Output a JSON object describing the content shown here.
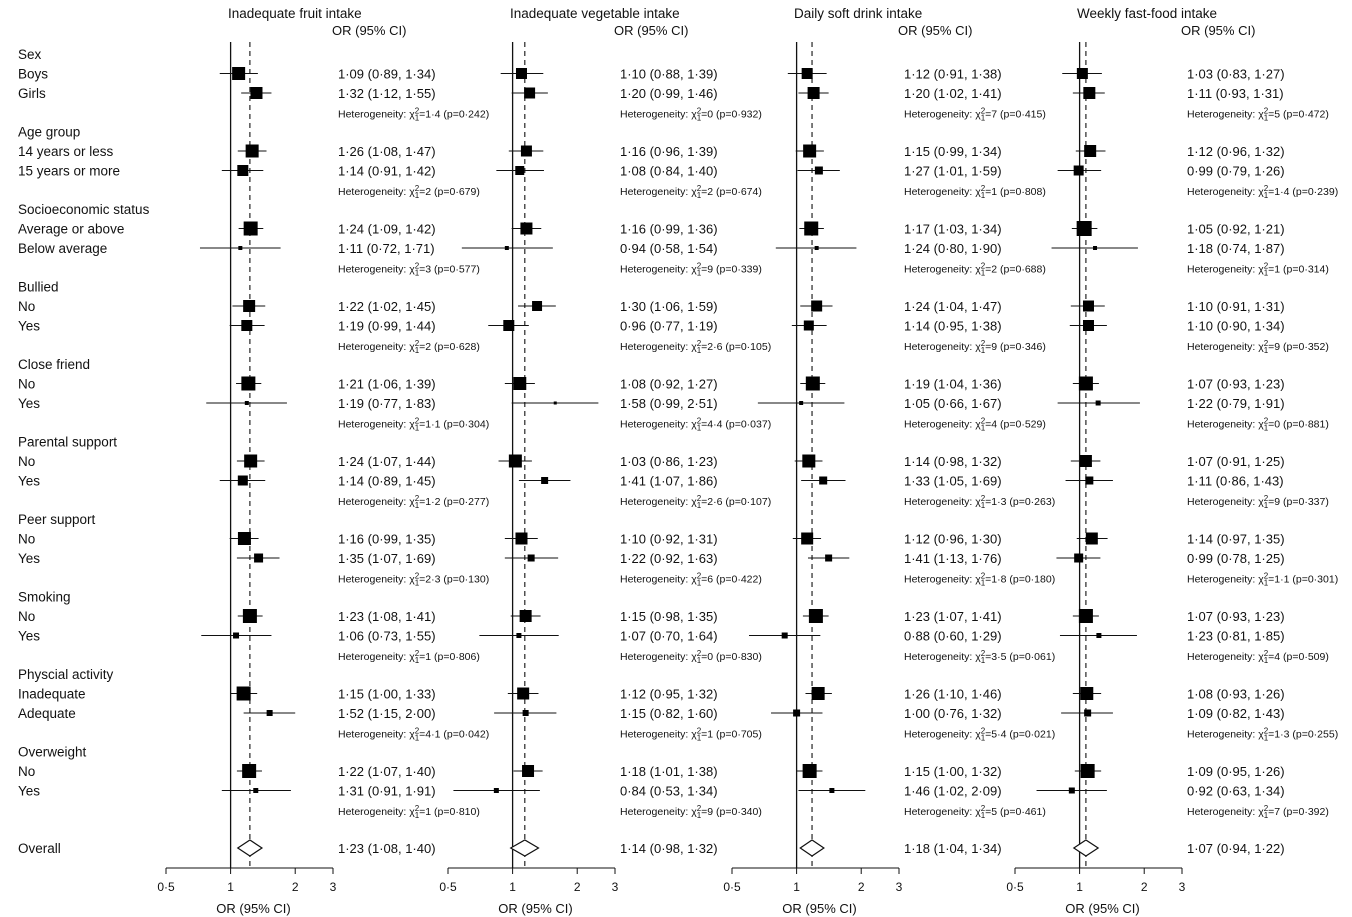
{
  "chart_data": {
    "type": "forest",
    "axis_title": "OR (95% CI)",
    "column_header": "OR (95% CI)",
    "x_scale": "log",
    "xlim": [
      0.5,
      3
    ],
    "x_ticks": [
      {
        "value": 0.5,
        "label": "0·5"
      },
      {
        "value": 1,
        "label": "1"
      },
      {
        "value": 2,
        "label": "2"
      },
      {
        "value": 3,
        "label": "3"
      }
    ],
    "reference_line": 1,
    "groups": [
      {
        "name": "Sex",
        "levels": [
          "Boys",
          "Girls"
        ]
      },
      {
        "name": "Age group",
        "levels": [
          "14 years or less",
          "15 years or more"
        ]
      },
      {
        "name": "Socioeconomic status",
        "levels": [
          "Average or above",
          "Below average"
        ]
      },
      {
        "name": "Bullied",
        "levels": [
          "No",
          "Yes"
        ]
      },
      {
        "name": "Close friend",
        "levels": [
          "No",
          "Yes"
        ]
      },
      {
        "name": "Parental support",
        "levels": [
          "No",
          "Yes"
        ]
      },
      {
        "name": "Peer support",
        "levels": [
          "No",
          "Yes"
        ]
      },
      {
        "name": "Smoking",
        "levels": [
          "No",
          "Yes"
        ]
      },
      {
        "name": "Physcial activity",
        "levels": [
          "Inadequate",
          "Adequate"
        ]
      },
      {
        "name": "Overweight",
        "levels": [
          "No",
          "Yes"
        ]
      }
    ],
    "overall_label": "Overall",
    "panels": [
      {
        "title": "Inadequate fruit intake",
        "estimates": [
          [
            [
              1.09,
              0.89,
              1.34,
              "1·09 (0·89, 1·34)",
              13
            ],
            [
              1.32,
              1.12,
              1.55,
              "1·32 (1·12, 1·55)",
              12
            ]
          ],
          [
            [
              1.26,
              1.08,
              1.47,
              "1·26 (1·08, 1·47)",
              13
            ],
            [
              1.14,
              0.91,
              1.42,
              "1·14 (0·91, 1·42)",
              11
            ]
          ],
          [
            [
              1.24,
              1.09,
              1.42,
              "1·24 (1·09, 1·42)",
              14
            ],
            [
              1.11,
              0.72,
              1.71,
              "1·11 (0·72, 1·71)",
              4
            ]
          ],
          [
            [
              1.22,
              1.02,
              1.45,
              "1·22 (1·02, 1·45)",
              12
            ],
            [
              1.19,
              0.99,
              1.44,
              "1·19 (0·99, 1·44)",
              11
            ]
          ],
          [
            [
              1.21,
              1.06,
              1.39,
              "1·21 (1·06, 1·39)",
              14
            ],
            [
              1.19,
              0.77,
              1.83,
              "1·19 (0·77, 1·83)",
              4
            ]
          ],
          [
            [
              1.24,
              1.07,
              1.44,
              "1·24 (1·07, 1·44)",
              13
            ],
            [
              1.14,
              0.89,
              1.45,
              "1·14 (0·89, 1·45)",
              10
            ]
          ],
          [
            [
              1.16,
              0.99,
              1.35,
              "1·16 (0·99, 1·35)",
              13
            ],
            [
              1.35,
              1.07,
              1.69,
              "1·35 (1·07, 1·69)",
              9
            ]
          ],
          [
            [
              1.23,
              1.08,
              1.41,
              "1·23 (1·08, 1·41)",
              14
            ],
            [
              1.06,
              0.73,
              1.55,
              "1·06 (0·73, 1·55)",
              6
            ]
          ],
          [
            [
              1.15,
              1.0,
              1.33,
              "1·15 (1·00, 1·33)",
              14
            ],
            [
              1.52,
              1.15,
              2.0,
              "1·52 (1·15, 2·00)",
              6
            ]
          ],
          [
            [
              1.22,
              1.07,
              1.4,
              "1·22 (1·07, 1·40)",
              14
            ],
            [
              1.31,
              0.91,
              1.91,
              "1·31 (0·91, 1·91)",
              5
            ]
          ]
        ],
        "heterogeneity": [
          {
            "chi": "1·4",
            "p": "(p=0·242)"
          },
          {
            "chi": "2",
            "p": "(p=0·679)"
          },
          {
            "chi": "3",
            "p": "(p=0·577)"
          },
          {
            "chi": "2",
            "p": "(p=0·628)"
          },
          {
            "chi": "1·1",
            "p": "(p=0·304)"
          },
          {
            "chi": "1·2",
            "p": "(p=0·277)"
          },
          {
            "chi": "2·3",
            "p": "(p=0·130)"
          },
          {
            "chi": "1",
            "p": "(p=0·806)"
          },
          {
            "chi": "4·1",
            "p": "(p=0·042)"
          },
          {
            "chi": "1",
            "p": "(p=0·810)"
          }
        ],
        "overall": [
          1.23,
          1.08,
          1.4,
          "1·23 (1·08, 1·40)"
        ]
      },
      {
        "title": "Inadequate vegetable intake",
        "estimates": [
          [
            [
              1.1,
              0.88,
              1.39,
              "1·10 (0·88, 1·39)",
              11
            ],
            [
              1.2,
              0.99,
              1.46,
              "1·20 (0·99, 1·46)",
              11
            ]
          ],
          [
            [
              1.16,
              0.96,
              1.39,
              "1·16 (0·96, 1·39)",
              11
            ],
            [
              1.08,
              0.84,
              1.4,
              "1·08 (0·84, 1·40)",
              9
            ]
          ],
          [
            [
              1.16,
              0.99,
              1.36,
              "1·16 (0·99, 1·36)",
              12
            ],
            [
              0.94,
              0.58,
              1.54,
              "0·94 (0·58, 1·54)",
              4
            ]
          ],
          [
            [
              1.3,
              1.06,
              1.59,
              "1·30 (1·06, 1·59)",
              10
            ],
            [
              0.96,
              0.77,
              1.19,
              "0·96 (0·77, 1·19)",
              11
            ]
          ],
          [
            [
              1.08,
              0.92,
              1.27,
              "1·08 (0·92, 1·27)",
              13
            ],
            [
              1.58,
              0.99,
              2.51,
              "1·58 (0·99, 2·51)",
              3
            ]
          ],
          [
            [
              1.03,
              0.86,
              1.23,
              "1·03 (0·86, 1·23)",
              13
            ],
            [
              1.41,
              1.07,
              1.86,
              "1·41 (1·07, 1·86)",
              7
            ]
          ],
          [
            [
              1.1,
              0.92,
              1.31,
              "1·10 (0·92, 1·31)",
              12
            ],
            [
              1.22,
              0.92,
              1.63,
              "1·22 (0·92, 1·63)",
              7
            ]
          ],
          [
            [
              1.15,
              0.98,
              1.35,
              "1·15 (0·98, 1·35)",
              12
            ],
            [
              1.07,
              0.7,
              1.64,
              "1·07 (0·70, 1·64)",
              5
            ]
          ],
          [
            [
              1.12,
              0.95,
              1.32,
              "1·12 (0·95, 1·32)",
              12
            ],
            [
              1.15,
              0.82,
              1.6,
              "1·15 (0·82, 1·60)",
              6
            ]
          ],
          [
            [
              1.18,
              1.01,
              1.38,
              "1·18 (1·01, 1·38)",
              12
            ],
            [
              0.84,
              0.53,
              1.34,
              "0·84 (0·53, 1·34)",
              5
            ]
          ]
        ],
        "heterogeneity": [
          {
            "chi": "0",
            "p": "(p=0·932)"
          },
          {
            "chi": "2",
            "p": "(p=0·674)"
          },
          {
            "chi": "9",
            "p": "(p=0·339)"
          },
          {
            "chi": "2·6",
            "p": "(p=0·105)"
          },
          {
            "chi": "4·4",
            "p": "(p=0·037)"
          },
          {
            "chi": "2·6",
            "p": "(p=0·107)"
          },
          {
            "chi": "6",
            "p": "(p=0·422)"
          },
          {
            "chi": "0",
            "p": "(p=0·830)"
          },
          {
            "chi": "1",
            "p": "(p=0·705)"
          },
          {
            "chi": "9",
            "p": "(p=0·340)"
          }
        ],
        "overall": [
          1.14,
          0.98,
          1.32,
          "1·14 (0·98, 1·32)"
        ]
      },
      {
        "title": "Daily soft drink intake",
        "estimates": [
          [
            [
              1.12,
              0.91,
              1.38,
              "1·12 (0·91, 1·38)",
              11
            ],
            [
              1.2,
              1.02,
              1.41,
              "1·20 (1·02, 1·41)",
              12
            ]
          ],
          [
            [
              1.15,
              0.99,
              1.34,
              "1·15 (0·99, 1·34)",
              13
            ],
            [
              1.27,
              1.01,
              1.59,
              "1·27 (1·01, 1·59)",
              8
            ]
          ],
          [
            [
              1.17,
              1.03,
              1.34,
              "1·17 (1·03, 1·34)",
              14
            ],
            [
              1.24,
              0.8,
              1.9,
              "1·24 (0·80, 1·90)",
              4
            ]
          ],
          [
            [
              1.24,
              1.04,
              1.47,
              "1·24 (1·04, 1·47)",
              11
            ],
            [
              1.14,
              0.95,
              1.38,
              "1·14 (0·95, 1·38)",
              10
            ]
          ],
          [
            [
              1.19,
              1.04,
              1.36,
              "1·19 (1·04, 1·36)",
              14
            ],
            [
              1.05,
              0.66,
              1.67,
              "1·05 (0·66, 1·67)",
              4
            ]
          ],
          [
            [
              1.14,
              0.98,
              1.32,
              "1·14 (0·98, 1·32)",
              13
            ],
            [
              1.33,
              1.05,
              1.69,
              "1·33 (1·05, 1·69)",
              8
            ]
          ],
          [
            [
              1.12,
              0.96,
              1.3,
              "1·12 (0·96, 1·30)",
              12
            ],
            [
              1.41,
              1.13,
              1.76,
              "1·41 (1·13, 1·76)",
              7
            ]
          ],
          [
            [
              1.23,
              1.07,
              1.41,
              "1·23 (1·07, 1·41)",
              14
            ],
            [
              0.88,
              0.6,
              1.29,
              "0·88 (0·60, 1·29)",
              6
            ]
          ],
          [
            [
              1.26,
              1.1,
              1.46,
              "1·26 (1·10, 1·46)",
              13
            ],
            [
              1.0,
              0.76,
              1.32,
              "1·00 (0·76, 1·32)",
              7
            ]
          ],
          [
            [
              1.15,
              1.0,
              1.32,
              "1·15 (1·00, 1·32)",
              14
            ],
            [
              1.46,
              1.02,
              2.09,
              "1·46 (1·02, 2·09)",
              5
            ]
          ]
        ],
        "heterogeneity": [
          {
            "chi": "7",
            "p": "(p=0·415)"
          },
          {
            "chi": "1",
            "p": "(p=0·808)"
          },
          {
            "chi": "2",
            "p": "(p=0·688)"
          },
          {
            "chi": "9",
            "p": "(p=0·346)"
          },
          {
            "chi": "4",
            "p": "(p=0·529)"
          },
          {
            "chi": "1·3",
            "p": "(p=0·263)"
          },
          {
            "chi": "1·8",
            "p": "(p=0·180)"
          },
          {
            "chi": "3·5",
            "p": "(p=0·061)"
          },
          {
            "chi": "5·4",
            "p": "(p=0·021)"
          },
          {
            "chi": "5",
            "p": "(p=0·461)"
          }
        ],
        "overall": [
          1.18,
          1.04,
          1.34,
          "1·18 (1·04, 1·34)"
        ]
      },
      {
        "title": "Weekly fast-food intake",
        "estimates": [
          [
            [
              1.03,
              0.83,
              1.27,
              "1·03 (0·83, 1·27)",
              11
            ],
            [
              1.11,
              0.93,
              1.31,
              "1·11 (0·93, 1·31)",
              12
            ]
          ],
          [
            [
              1.12,
              0.96,
              1.32,
              "1·12 (0·96, 1·32)",
              12
            ],
            [
              0.99,
              0.79,
              1.26,
              "0·99 (0·79, 1·26)",
              10
            ]
          ],
          [
            [
              1.05,
              0.92,
              1.21,
              "1·05 (0·92, 1·21)",
              15
            ],
            [
              1.18,
              0.74,
              1.87,
              "1·18 (0·74, 1·87)",
              4
            ]
          ],
          [
            [
              1.1,
              0.91,
              1.31,
              "1·10 (0·91, 1·31)",
              11
            ],
            [
              1.1,
              0.9,
              1.34,
              "1·10 (0·90, 1·34)",
              11
            ]
          ],
          [
            [
              1.07,
              0.93,
              1.23,
              "1·07 (0·93, 1·23)",
              14
            ],
            [
              1.22,
              0.79,
              1.91,
              "1·22 (0·79, 1·91)",
              5
            ]
          ],
          [
            [
              1.07,
              0.91,
              1.25,
              "1·07 (0·91, 1·25)",
              12
            ],
            [
              1.11,
              0.86,
              1.43,
              "1·11 (0·86, 1·43)",
              8
            ]
          ],
          [
            [
              1.14,
              0.97,
              1.35,
              "1·14 (0·97, 1·35)",
              12
            ],
            [
              0.99,
              0.78,
              1.25,
              "0·99 (0·78, 1·25)",
              9
            ]
          ],
          [
            [
              1.07,
              0.93,
              1.23,
              "1·07 (0·93, 1·23)",
              14
            ],
            [
              1.23,
              0.81,
              1.85,
              "1·23 (0·81, 1·85)",
              5
            ]
          ],
          [
            [
              1.08,
              0.93,
              1.26,
              "1·08 (0·93, 1·26)",
              13
            ],
            [
              1.09,
              0.82,
              1.43,
              "1·09 (0·82, 1·43)",
              7
            ]
          ],
          [
            [
              1.09,
              0.95,
              1.26,
              "1·09 (0·95, 1·26)",
              14
            ],
            [
              0.92,
              0.63,
              1.34,
              "0·92 (0·63, 1·34)",
              6
            ]
          ]
        ],
        "heterogeneity": [
          {
            "chi": "5",
            "p": "(p=0·472)"
          },
          {
            "chi": "1·4",
            "p": "(p=0·239)"
          },
          {
            "chi": "1",
            "p": "(p=0·314)"
          },
          {
            "chi": "9",
            "p": "(p=0·352)"
          },
          {
            "chi": "0",
            "p": "(p=0·881)"
          },
          {
            "chi": "9",
            "p": "(p=0·337)"
          },
          {
            "chi": "1·1",
            "p": "(p=0·301)"
          },
          {
            "chi": "4",
            "p": "(p=0·509)"
          },
          {
            "chi": "1·3",
            "p": "(p=0·255)"
          },
          {
            "chi": "7",
            "p": "(p=0·392)"
          }
        ],
        "overall": [
          1.07,
          0.94,
          1.22,
          "1·07 (0·94, 1·22)"
        ]
      }
    ]
  }
}
